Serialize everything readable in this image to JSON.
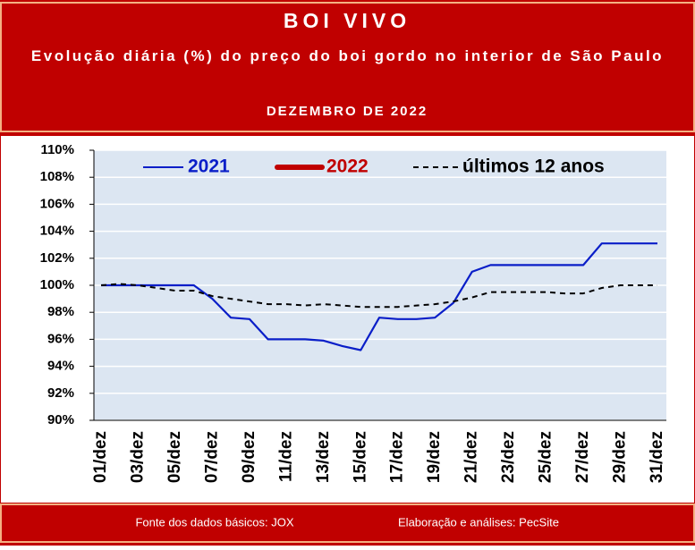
{
  "chart_data": {
    "type": "line",
    "title": "BOI VIVO",
    "subtitle": "Evolução diária (%) do preço do boi gordo no interior de São Paulo",
    "period": "DEZEMBRO DE 2022",
    "source": "Fonte dos dados básicos: JOX",
    "credit": "Elaboração e análises: PecSite",
    "categories": [
      "01/dez",
      null,
      "03/dez",
      null,
      "05/dez",
      null,
      "07/dez",
      null,
      "09/dez",
      null,
      "11/dez",
      null,
      "13/dez",
      null,
      "15/dez",
      null,
      "17/dez",
      null,
      "19/dez",
      null,
      "21/dez",
      null,
      "23/dez",
      null,
      "25/dez",
      null,
      "27/dez",
      null,
      "29/dez",
      null,
      "31/dez"
    ],
    "series": [
      {
        "name": "2021",
        "color": "#0a1ec8",
        "dash": false,
        "values": [
          100,
          100,
          100,
          100,
          100,
          100,
          99.0,
          97.6,
          97.5,
          96.0,
          96.0,
          96.0,
          95.9,
          95.5,
          95.2,
          97.6,
          97.5,
          97.5,
          97.6,
          98.7,
          101.0,
          101.5,
          101.5,
          101.5,
          101.5,
          101.5,
          101.5,
          103.1,
          103.1,
          103.1,
          103.1
        ]
      },
      {
        "name": "2022",
        "color": "#c00000",
        "dash": false,
        "values": [
          null,
          null,
          null,
          null,
          null,
          null,
          null,
          null,
          null,
          null,
          null,
          null,
          null,
          null,
          null,
          null,
          null,
          null,
          null,
          null,
          null,
          null,
          null,
          null,
          null,
          null,
          null,
          null,
          null,
          null,
          null
        ]
      },
      {
        "name": "últimos 12 anos",
        "color": "#000000",
        "dash": true,
        "values": [
          100,
          100.1,
          100,
          99.8,
          99.6,
          99.6,
          99.2,
          99.0,
          98.8,
          98.6,
          98.6,
          98.5,
          98.6,
          98.5,
          98.4,
          98.4,
          98.4,
          98.5,
          98.6,
          98.8,
          99.1,
          99.5,
          99.5,
          99.5,
          99.5,
          99.4,
          99.4,
          99.8,
          100,
          100,
          100
        ]
      }
    ],
    "ylim": [
      90,
      110
    ],
    "yticks": [
      {
        "value": 90,
        "label": "90%"
      },
      {
        "value": 92,
        "label": "92%"
      },
      {
        "value": 94,
        "label": "94%"
      },
      {
        "value": 96,
        "label": "96%"
      },
      {
        "value": 98,
        "label": "98%"
      },
      {
        "value": 100,
        "label": "100%"
      },
      {
        "value": 102,
        "label": "102%"
      },
      {
        "value": 104,
        "label": "104%"
      },
      {
        "value": 106,
        "label": "106%"
      },
      {
        "value": 108,
        "label": "108%"
      },
      {
        "value": 110,
        "label": "110%"
      }
    ],
    "grid": true
  }
}
